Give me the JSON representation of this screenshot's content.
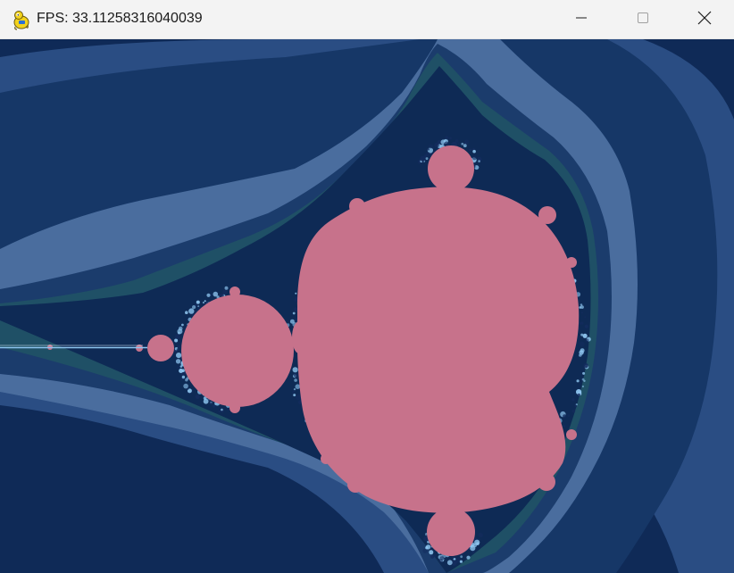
{
  "window": {
    "title": "FPS: 33.11258316040039",
    "app_icon": "pygame-snake-icon",
    "controls": {
      "minimize": "minimize-icon",
      "maximize": "maximize-icon",
      "close": "close-icon"
    }
  },
  "canvas": {
    "content": "mandelbrot-set-render",
    "colors": {
      "set_interior": "#c7728b",
      "background_outer": "#0f2a57",
      "band_1": "#2a4d83",
      "band_2": "#163767",
      "band_3": "#4a6d9e",
      "band_4": "#1b3c6c",
      "band_5": "#1f5066",
      "band_6": "#0e2a55",
      "filament_light": "#8fc6f0",
      "filament_dark": "#142c5e"
    }
  }
}
